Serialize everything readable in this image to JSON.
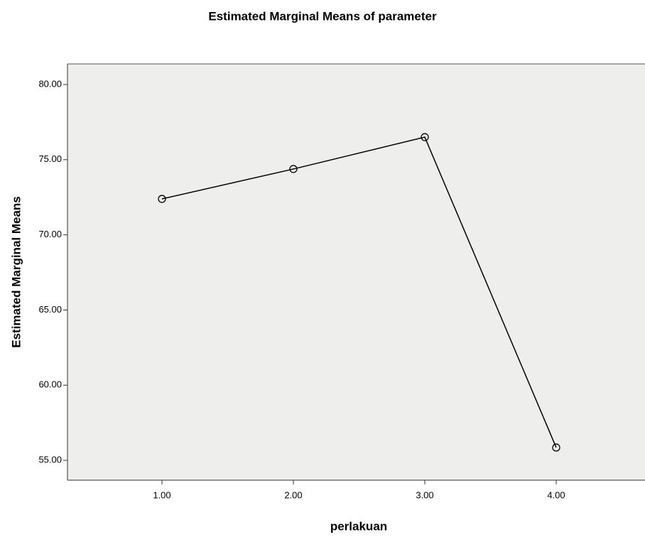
{
  "chart_data": {
    "type": "line",
    "title": "Estimated Marginal Means of parameter",
    "x_label": "perlakuan",
    "y_label": "Estimated Marginal Means",
    "categories": [
      "1.00",
      "2.00",
      "3.00",
      "4.00"
    ],
    "series": [
      {
        "color": "#000000",
        "values": [
          72.39,
          74.38,
          76.5,
          55.85
        ]
      }
    ],
    "ylim": [
      53.68,
      81.37
    ],
    "yticks": [
      {
        "value": 55,
        "label": "55.00"
      },
      {
        "value": 60,
        "label": "60.00"
      },
      {
        "value": 65,
        "label": "65.00"
      },
      {
        "value": 70,
        "label": "70.00"
      },
      {
        "value": 75,
        "label": "75.00"
      },
      {
        "value": 80,
        "label": "80.00"
      }
    ],
    "grid": false
  }
}
